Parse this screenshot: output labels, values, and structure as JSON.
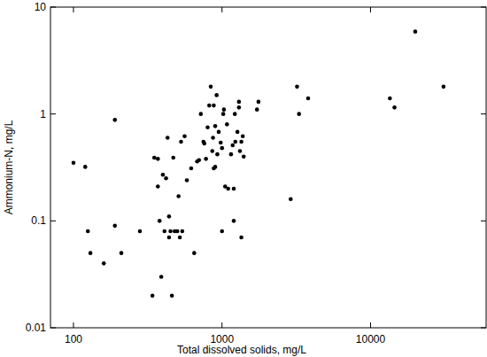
{
  "chart_data": {
    "type": "scatter",
    "x_label": "Total dissolved solids, mg/L",
    "y_label": "Ammonium-N, mg/L",
    "x": [
      100,
      120,
      125,
      130,
      160,
      190,
      190,
      210,
      280,
      340,
      350,
      370,
      370,
      380,
      390,
      400,
      410,
      420,
      430,
      440,
      440,
      450,
      460,
      470,
      480,
      500,
      510,
      520,
      530,
      540,
      560,
      580,
      620,
      650,
      680,
      700,
      720,
      750,
      760,
      780,
      800,
      820,
      840,
      860,
      870,
      880,
      880,
      900,
      900,
      920,
      930,
      950,
      980,
      1000,
      1000,
      1020,
      1030,
      1050,
      1080,
      1100,
      1150,
      1180,
      1200,
      1200,
      1220,
      1230,
      1270,
      1300,
      1300,
      1320,
      1350,
      1350,
      1380,
      1400,
      1720,
      1760,
      2900,
      3200,
      3300,
      3800,
      13500,
      14500,
      20000,
      31000
    ],
    "values": [
      0.35,
      0.32,
      0.08,
      0.05,
      0.04,
      0.88,
      0.09,
      0.05,
      0.08,
      0.02,
      0.39,
      0.38,
      0.21,
      0.1,
      0.03,
      0.27,
      0.08,
      0.25,
      0.6,
      0.11,
      0.07,
      0.08,
      0.02,
      0.39,
      0.08,
      0.08,
      0.17,
      0.07,
      0.55,
      0.08,
      0.62,
      0.24,
      0.31,
      0.05,
      0.36,
      0.37,
      1.0,
      0.55,
      0.53,
      0.38,
      0.75,
      1.2,
      1.8,
      0.45,
      0.6,
      0.31,
      1.2,
      0.32,
      0.77,
      1.5,
      0.42,
      0.68,
      0.54,
      0.08,
      0.48,
      1.0,
      1.1,
      0.21,
      0.8,
      0.2,
      0.42,
      0.51,
      0.1,
      0.2,
      1.0,
      0.55,
      0.68,
      1.15,
      1.3,
      0.45,
      0.55,
      0.07,
      0.62,
      0.4,
      1.1,
      1.3,
      0.16,
      1.8,
      1.0,
      1.4,
      1.4,
      1.15,
      5.9,
      1.8
    ],
    "color": "#000000",
    "marker": "circle",
    "log": true,
    "xlim": [
      70,
      60000
    ],
    "xticks": [
      100,
      1000,
      10000
    ],
    "ylim": [
      0.01,
      10
    ],
    "yticks": [
      0.01,
      0.1,
      1,
      10
    ],
    "grid": false
  }
}
